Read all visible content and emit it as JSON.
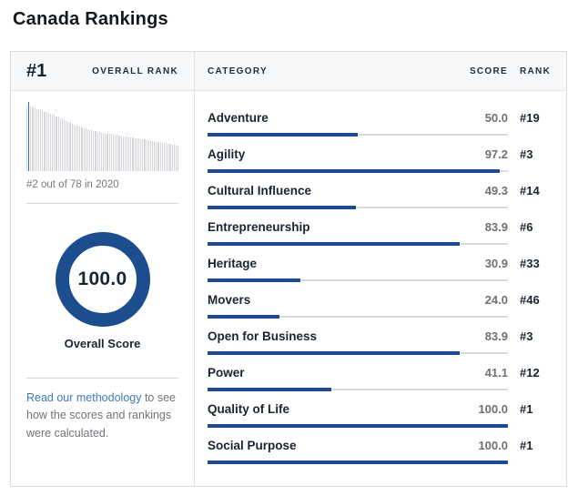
{
  "page_title": "Canada Rankings",
  "colors": {
    "brand_blue": "#1b4d8f",
    "highlight_blue": "#2e6bd0",
    "link_blue": "#4379ba",
    "track_gray": "#d8dadc",
    "text_dark": "#1b2531",
    "text_gray": "#75787b",
    "header_bg": "#f7f8f9"
  },
  "overall": {
    "rank_value": "#1",
    "rank_label": "OVERALL RANK",
    "histogram_caption": "#2 out of 78 in 2020",
    "score_value": "100.0",
    "score_label": "Overall Score",
    "methodology_link": "Read our methodology",
    "methodology_rest": " to see how the scores and rankings were calculated."
  },
  "table": {
    "headers": {
      "category": "CATEGORY",
      "score": "SCORE",
      "rank": "RANK"
    },
    "rows": [
      {
        "category": "Adventure",
        "score": "50.0",
        "score_num": 50.0,
        "rank": "#19"
      },
      {
        "category": "Agility",
        "score": "97.2",
        "score_num": 97.2,
        "rank": "#3"
      },
      {
        "category": "Cultural Influence",
        "score": "49.3",
        "score_num": 49.3,
        "rank": "#14"
      },
      {
        "category": "Entrepreneurship",
        "score": "83.9",
        "score_num": 83.9,
        "rank": "#6"
      },
      {
        "category": "Heritage",
        "score": "30.9",
        "score_num": 30.9,
        "rank": "#33"
      },
      {
        "category": "Movers",
        "score": "24.0",
        "score_num": 24.0,
        "rank": "#46"
      },
      {
        "category": "Open for Business",
        "score": "83.9",
        "score_num": 83.9,
        "rank": "#3"
      },
      {
        "category": "Power",
        "score": "41.1",
        "score_num": 41.1,
        "rank": "#12"
      },
      {
        "category": "Quality of Life",
        "score": "100.0",
        "score_num": 100.0,
        "rank": "#1"
      },
      {
        "category": "Social Purpose",
        "score": "100.0",
        "score_num": 100.0,
        "rank": "#1"
      }
    ]
  },
  "chart_data": [
    {
      "type": "bar",
      "title": "Overall rank distribution",
      "caption": "#2 out of 78 in 2020",
      "n_bars": 78,
      "highlight_index": 1,
      "ylim": [
        0,
        100
      ],
      "grid": false,
      "values": [
        100,
        99,
        98,
        97,
        96,
        95,
        94,
        93,
        92,
        91,
        90,
        89,
        88,
        87,
        86,
        84,
        83,
        81,
        80,
        78,
        77,
        75,
        74,
        72,
        71,
        70,
        69,
        68,
        67,
        66,
        65,
        64,
        63,
        62,
        61,
        60.5,
        60,
        59.5,
        59,
        58.5,
        58,
        57.5,
        57,
        56.5,
        56,
        55.5,
        55,
        54.5,
        54,
        53.5,
        53,
        52.5,
        52,
        51.5,
        51,
        50.5,
        50,
        49.5,
        49,
        48.5,
        48,
        47.5,
        47,
        46.5,
        46,
        45.5,
        45,
        44.5,
        44,
        43.5,
        43,
        42.5,
        42,
        41.5,
        41,
        40.5,
        40,
        39.5
      ]
    },
    {
      "type": "bar",
      "title": "Canada category scores",
      "categories": [
        "Adventure",
        "Agility",
        "Cultural Influence",
        "Entrepreneurship",
        "Heritage",
        "Movers",
        "Open for Business",
        "Power",
        "Quality of Life",
        "Social Purpose"
      ],
      "values": [
        50.0,
        97.2,
        49.3,
        83.9,
        30.9,
        24.0,
        83.9,
        41.1,
        100.0,
        100.0
      ],
      "ranks": [
        "#19",
        "#3",
        "#14",
        "#6",
        "#33",
        "#46",
        "#3",
        "#12",
        "#1",
        "#1"
      ],
      "xlim": [
        0,
        100
      ],
      "grid": false
    }
  ]
}
